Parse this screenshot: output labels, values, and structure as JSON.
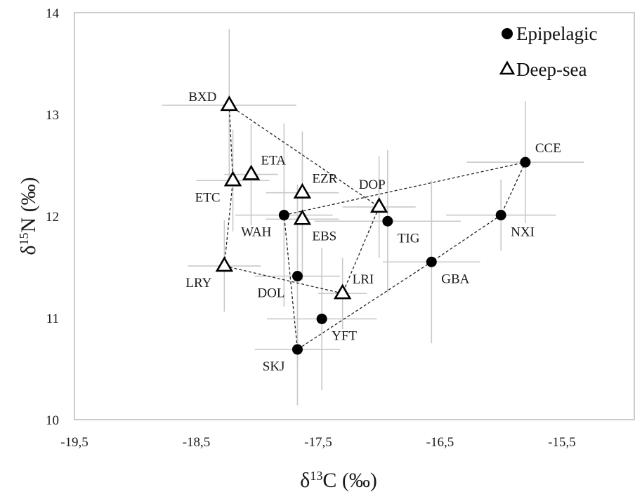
{
  "chart_data": {
    "type": "scatter",
    "xlim": [
      -19.5,
      -14.9
    ],
    "ylim": [
      10,
      14
    ],
    "x_ticks": [
      {
        "value": -19.5,
        "label": "-19,5"
      },
      {
        "value": -18.5,
        "label": "-18,5"
      },
      {
        "value": -17.5,
        "label": "-17,5"
      },
      {
        "value": -16.5,
        "label": "-16,5"
      },
      {
        "value": -15.5,
        "label": "-15,5"
      }
    ],
    "y_ticks": [
      {
        "value": 10,
        "label": "10"
      },
      {
        "value": 11,
        "label": "11"
      },
      {
        "value": 12,
        "label": "12"
      },
      {
        "value": 13,
        "label": "13"
      },
      {
        "value": 14,
        "label": "14"
      }
    ],
    "xlabel": {
      "main": "δ",
      "sup": "13",
      "rest": "C (‰)"
    },
    "ylabel": {
      "main": "δ",
      "sup": "15",
      "rest": "N (‰)"
    },
    "grid": false,
    "legend_position": "top-right",
    "series": [
      {
        "name": "Epipelagic",
        "marker": "circle",
        "color": "#000000",
        "hull": [
          "WAH",
          "CCE",
          "NXI",
          "GBA",
          "SKJ"
        ],
        "points": [
          {
            "label": "CCE",
            "x": -15.8,
            "y": 12.53,
            "xerr": 0.48,
            "yerr": 0.6,
            "label_pos": "upper-right"
          },
          {
            "label": "NXI",
            "x": -16.0,
            "y": 12.01,
            "xerr": 0.45,
            "yerr": 0.35,
            "label_pos": "lower-right"
          },
          {
            "label": "TIG",
            "x": -16.93,
            "y": 11.95,
            "xerr": 0.6,
            "yerr": 0.7,
            "label_pos": "lower-right"
          },
          {
            "label": "GBA",
            "x": -16.57,
            "y": 11.55,
            "xerr": 0.4,
            "yerr": 0.8,
            "label_pos": "lower-right"
          },
          {
            "label": "WAH",
            "x": -17.78,
            "y": 12.01,
            "xerr": 0.4,
            "yerr": 0.9,
            "label_pos": "lower-left"
          },
          {
            "label": "DOL",
            "x": -17.67,
            "y": 11.41,
            "xerr": 0.35,
            "yerr": 0.9,
            "label_pos": "lower-left"
          },
          {
            "label": "YFT",
            "x": -17.47,
            "y": 10.99,
            "xerr": 0.45,
            "yerr": 0.7,
            "label_pos": "lower-right"
          },
          {
            "label": "SKJ",
            "x": -17.67,
            "y": 10.69,
            "xerr": 0.35,
            "yerr": 0.55,
            "label_pos": "lower-left"
          }
        ]
      },
      {
        "name": "Deep-sea",
        "marker": "triangle-open",
        "color": "#000000",
        "hull": [
          "BXD",
          "DOP",
          "LRI",
          "LRY",
          "ETC"
        ],
        "points": [
          {
            "label": "BXD",
            "x": -18.23,
            "y": 13.09,
            "xerr": 0.55,
            "yerr": 0.75,
            "label_pos": "upper-left"
          },
          {
            "label": "ETA",
            "x": -18.05,
            "y": 12.41,
            "xerr": 0.22,
            "yerr": 0.5,
            "label_pos": "upper-right"
          },
          {
            "label": "ETC",
            "x": -18.2,
            "y": 12.35,
            "xerr": 0.3,
            "yerr": 0.5,
            "label_pos": "lower-left"
          },
          {
            "label": "EZR",
            "x": -17.63,
            "y": 12.23,
            "xerr": 0.3,
            "yerr": 0.6,
            "label_pos": "upper-right"
          },
          {
            "label": "EBS",
            "x": -17.63,
            "y": 11.97,
            "xerr": 0.3,
            "yerr": 0.6,
            "label_pos": "lower-right"
          },
          {
            "label": "DOP",
            "x": -17.0,
            "y": 12.09,
            "xerr": 0.3,
            "yerr": 0.5,
            "label_pos": "upper-center"
          },
          {
            "label": "LRI",
            "x": -17.3,
            "y": 11.24,
            "xerr": 0.2,
            "yerr": 0.35,
            "label_pos": "upper-right"
          },
          {
            "label": "LRY",
            "x": -18.27,
            "y": 11.51,
            "xerr": 0.3,
            "yerr": 0.45,
            "label_pos": "lower-left"
          }
        ]
      }
    ]
  }
}
